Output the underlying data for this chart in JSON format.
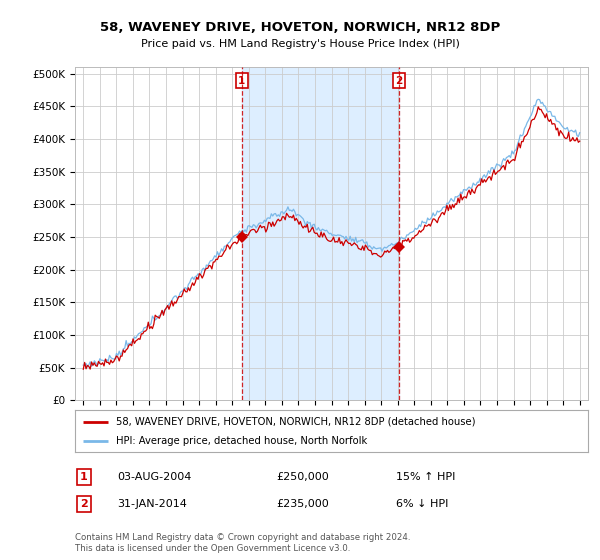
{
  "title": "58, WAVENEY DRIVE, HOVETON, NORWICH, NR12 8DP",
  "subtitle": "Price paid vs. HM Land Registry's House Price Index (HPI)",
  "legend_line1": "58, WAVENEY DRIVE, HOVETON, NORWICH, NR12 8DP (detached house)",
  "legend_line2": "HPI: Average price, detached house, North Norfolk",
  "sale1_date": "03-AUG-2004",
  "sale1_price": "£250,000",
  "sale1_hpi": "15% ↑ HPI",
  "sale2_date": "31-JAN-2014",
  "sale2_price": "£235,000",
  "sale2_hpi": "6% ↓ HPI",
  "footer": "Contains HM Land Registry data © Crown copyright and database right 2024.\nThis data is licensed under the Open Government Licence v3.0.",
  "hpi_color": "#7ab8e8",
  "sale_color": "#cc0000",
  "shade_color": "#ddeeff",
  "background_color": "#ffffff",
  "grid_color": "#cccccc",
  "ylim": [
    0,
    510000
  ],
  "yticks": [
    0,
    50000,
    100000,
    150000,
    200000,
    250000,
    300000,
    350000,
    400000,
    450000,
    500000
  ],
  "sale1_x_year": 2004.58,
  "sale1_y": 250000,
  "sale2_x_year": 2014.08,
  "sale2_y": 235000,
  "xlim_left": 1994.5,
  "xlim_right": 2025.5
}
